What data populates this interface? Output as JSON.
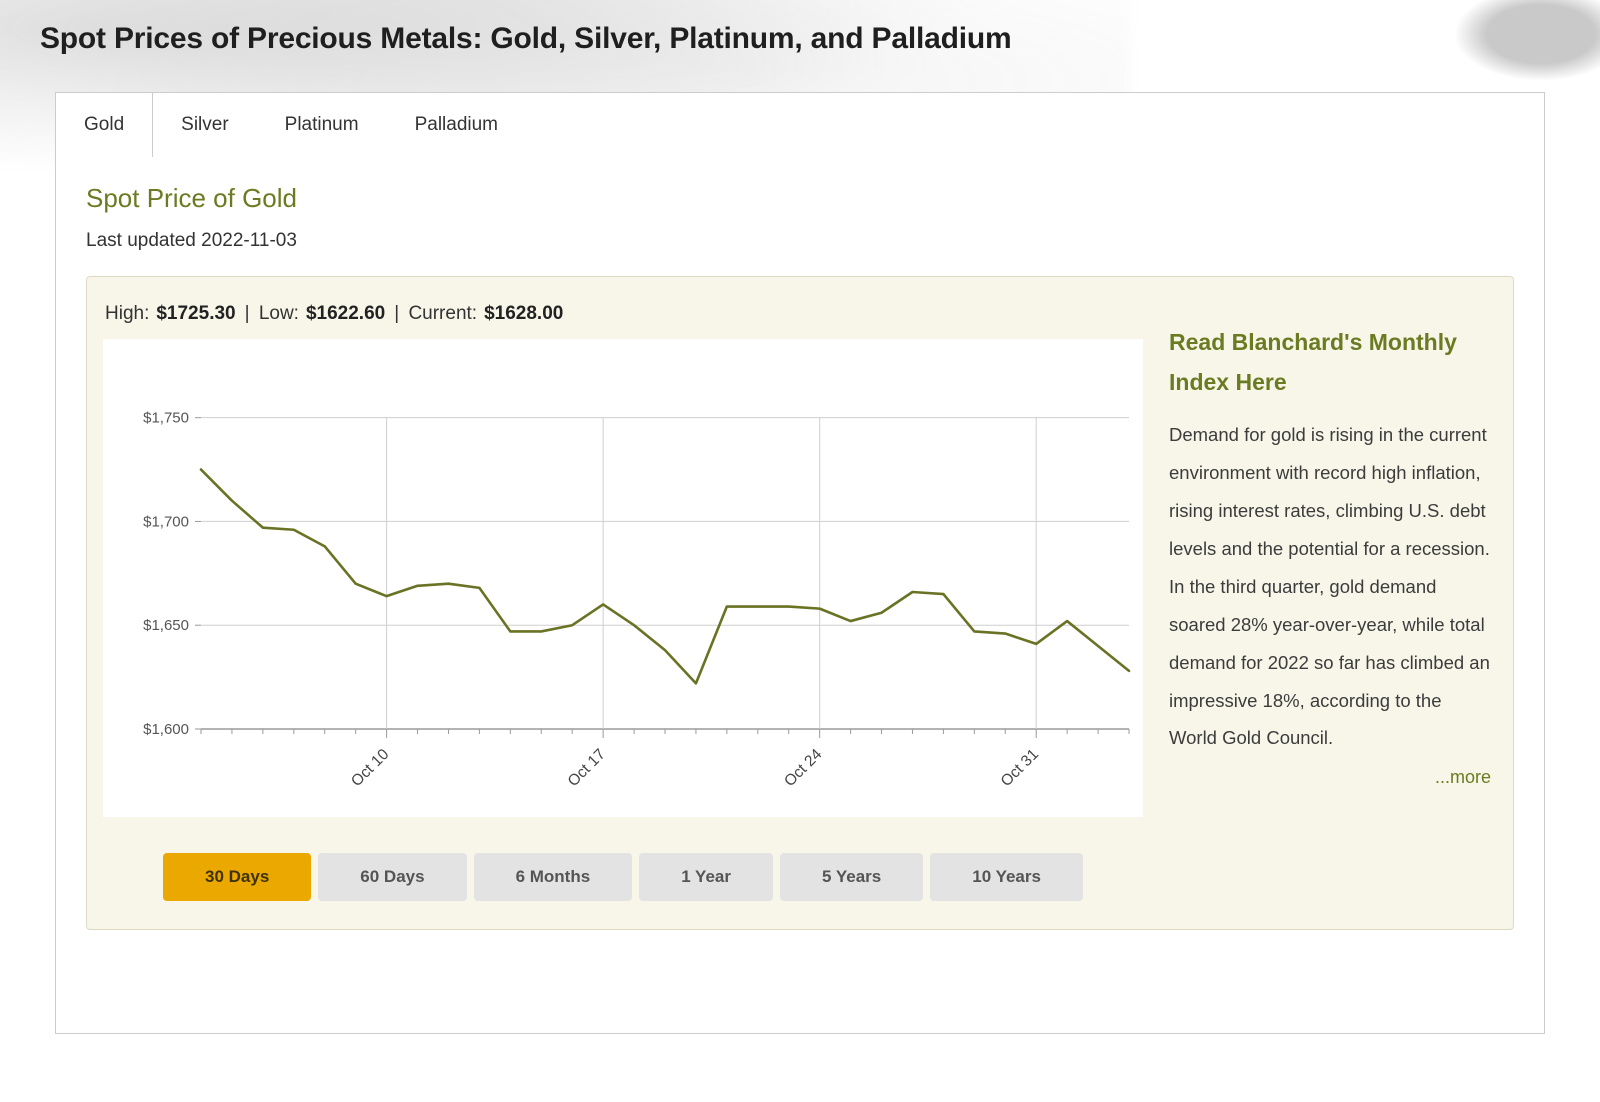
{
  "page": {
    "title": "Spot Prices of Precious Metals: Gold, Silver, Platinum, and Palladium"
  },
  "tabs": [
    {
      "label": "Gold",
      "active": true
    },
    {
      "label": "Silver",
      "active": false
    },
    {
      "label": "Platinum",
      "active": false
    },
    {
      "label": "Palladium",
      "active": false
    }
  ],
  "section": {
    "heading": "Spot Price of Gold",
    "last_updated": "Last updated 2022-11-03"
  },
  "stats": {
    "high_label": "High:",
    "high": "$1725.30",
    "low_label": "Low:",
    "low": "$1622.60",
    "current_label": "Current:",
    "current": "$1628.00",
    "separator": "|"
  },
  "range_buttons": [
    {
      "label": "30 Days",
      "active": true
    },
    {
      "label": "60 Days",
      "active": false
    },
    {
      "label": "6 Months",
      "active": false
    },
    {
      "label": "1 Year",
      "active": false
    },
    {
      "label": "5 Years",
      "active": false
    },
    {
      "label": "10 Years",
      "active": false
    }
  ],
  "sidebar": {
    "heading": "Read Blanchard's Monthly Index Here",
    "body": "Demand for gold is rising in the current environment with record high inflation, rising interest rates, climbing U.S. debt levels and the potential for a recession. In the third quarter, gold demand soared 28% year-over-year, while total demand for 2022 so far has climbed an impressive 18%, according to the World Gold Council.",
    "more_link": "...more"
  },
  "colors": {
    "accent": "#6b7b21",
    "line": "#6a7223",
    "button_active_bg": "#eaa800",
    "button_active_text": "#3f3305",
    "button_bg": "#e3e3e3",
    "button_text": "#555555",
    "panel_bg": "#f7f6e9",
    "panel_border": "#ddd9c2",
    "card_border": "#cccccc"
  },
  "chart_data": {
    "type": "line",
    "title": "",
    "xlabel": "",
    "ylabel": "",
    "dates": [
      "Oct 4",
      "Oct 5",
      "Oct 6",
      "Oct 7",
      "Oct 8",
      "Oct 9",
      "Oct 10",
      "Oct 11",
      "Oct 12",
      "Oct 13",
      "Oct 14",
      "Oct 15",
      "Oct 16",
      "Oct 17",
      "Oct 18",
      "Oct 19",
      "Oct 20",
      "Oct 21",
      "Oct 22",
      "Oct 23",
      "Oct 24",
      "Oct 25",
      "Oct 26",
      "Oct 27",
      "Oct 28",
      "Oct 29",
      "Oct 30",
      "Oct 31",
      "Nov 1",
      "Nov 2",
      "Nov 3"
    ],
    "values": [
      1725,
      1710,
      1697,
      1696,
      1688,
      1670,
      1664,
      1669,
      1670,
      1668,
      1647,
      1647,
      1650,
      1660,
      1650,
      1638,
      1622,
      1659,
      1659,
      1659,
      1658,
      1652,
      1656,
      1666,
      1665,
      1647,
      1646,
      1641,
      1652,
      1640,
      1628
    ],
    "high": 1725.3,
    "low": 1622.6,
    "current": 1628.0,
    "ylim": [
      1600,
      1785
    ],
    "yticks": [
      1600,
      1650,
      1700,
      1750
    ],
    "ytick_labels": [
      "$1,600",
      "$1,650",
      "$1,700",
      "$1,750"
    ],
    "xticks": [
      {
        "index": 6,
        "label": "Oct 10"
      },
      {
        "index": 13,
        "label": "Oct 17"
      },
      {
        "index": 20,
        "label": "Oct 24"
      },
      {
        "index": 27,
        "label": "Oct 31"
      }
    ],
    "grid": true,
    "legend": false,
    "line_color": "#6a7223"
  }
}
